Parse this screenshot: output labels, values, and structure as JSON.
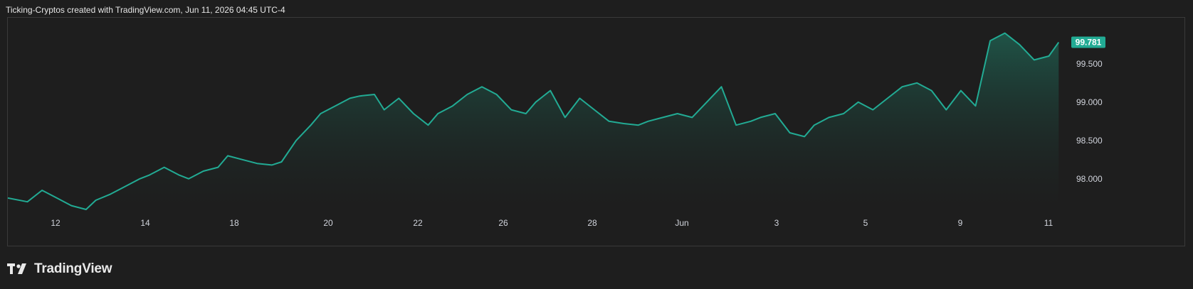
{
  "header": {
    "caption": "Ticking-Cryptos created with TradingView.com, Jun 11, 2026 04:45 UTC-4"
  },
  "brand": {
    "name": "TradingView"
  },
  "colors": {
    "line": "#22ab94",
    "area_top": "#1f5a4c",
    "background": "#1e1e1e",
    "axis_text": "#d1d4dc",
    "badge": "#22ab94"
  },
  "chart_data": {
    "type": "area",
    "title": "",
    "xlabel": "",
    "ylabel": "",
    "x_ticks": [
      "12",
      "14",
      "18",
      "20",
      "22",
      "26",
      "28",
      "Jun",
      "3",
      "5",
      "9",
      "11"
    ],
    "y_ticks": [
      "98.000",
      "98.500",
      "99.000",
      "99.500"
    ],
    "ylim": [
      97.6,
      100.1
    ],
    "last_value": "99.781",
    "grid": false,
    "series": [
      {
        "x": [
          0,
          2,
          3.5,
          5,
          6.5,
          8,
          9,
          10.5,
          12,
          13.5,
          14.5,
          16,
          17.5,
          18.5,
          20,
          21.5,
          22.5,
          24,
          25.5,
          27,
          28,
          29.5,
          31,
          32,
          33.5,
          35,
          36,
          37.5,
          38.5,
          40,
          41.5,
          43,
          44,
          45.5,
          47,
          48.5,
          50,
          51.5,
          53,
          54,
          55.5,
          57,
          58.5,
          60,
          61.5,
          63,
          64.5,
          65.5,
          67,
          68.5,
          70,
          71.5,
          73,
          74.5,
          76,
          77,
          78.5,
          80,
          81.5,
          82.5,
          84,
          85.5,
          87,
          88.5,
          90,
          91.5,
          93,
          94.5,
          96,
          97.5,
          99,
          100.5,
          102,
          103.5,
          105,
          106.5,
          107.5
        ],
        "values": [
          97.75,
          97.7,
          97.85,
          97.75,
          97.65,
          97.6,
          97.72,
          97.8,
          97.9,
          98.0,
          98.05,
          98.15,
          98.05,
          98.0,
          98.1,
          98.15,
          98.3,
          98.25,
          98.2,
          98.18,
          98.22,
          98.5,
          98.7,
          98.85,
          98.95,
          99.05,
          99.08,
          99.1,
          98.9,
          99.05,
          98.85,
          98.7,
          98.85,
          98.95,
          99.1,
          99.2,
          99.1,
          98.9,
          98.85,
          99.0,
          99.15,
          98.8,
          99.05,
          98.9,
          98.75,
          98.72,
          98.7,
          98.75,
          98.8,
          98.85,
          98.8,
          99.0,
          99.2,
          98.7,
          98.75,
          98.8,
          98.85,
          98.6,
          98.55,
          98.7,
          98.8,
          98.85,
          99.0,
          98.9,
          99.05,
          99.2,
          99.25,
          99.15,
          98.9,
          99.15,
          98.95,
          99.8,
          99.9,
          99.75,
          99.55,
          99.6,
          99.78
        ]
      }
    ]
  }
}
